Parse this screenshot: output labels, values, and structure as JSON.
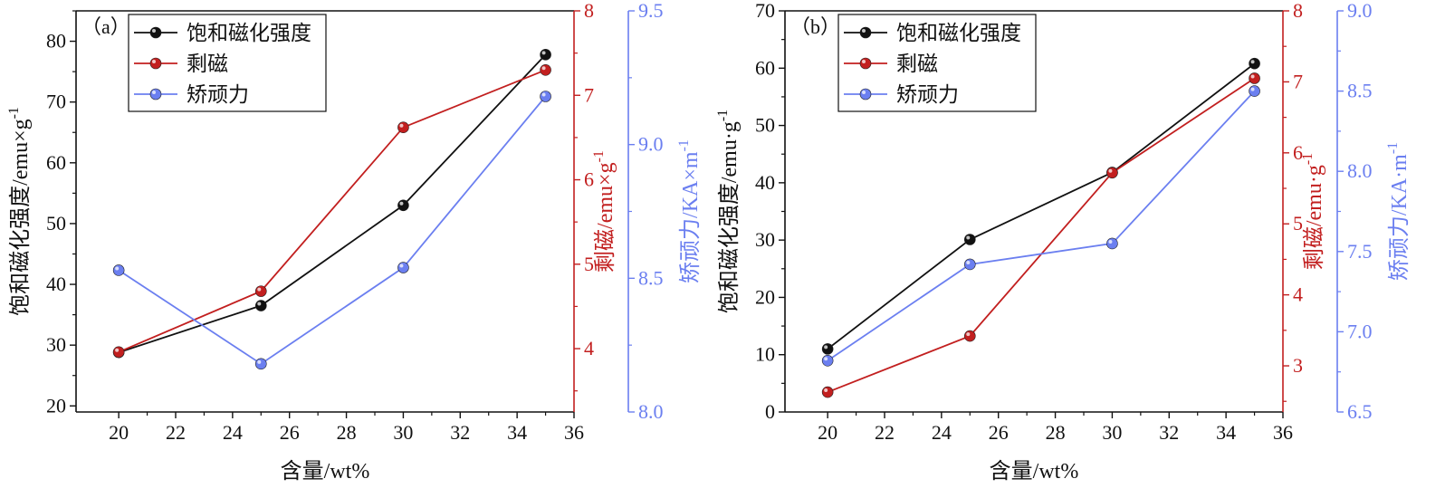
{
  "colors": {
    "black": "#111111",
    "red": "#c21f1f",
    "blue": "#6b7ff0",
    "frame": "#111111"
  },
  "chart_data": [
    {
      "type": "line",
      "panel_label": "（a）",
      "x": [
        20,
        25,
        30,
        35
      ],
      "xlabel": "含量/wt%",
      "xlim": [
        18.5,
        36
      ],
      "xticks": [
        20,
        22,
        24,
        26,
        28,
        30,
        32,
        34,
        36
      ],
      "axes": {
        "left": {
          "label": "饱和磁化强度/emu×g",
          "label_sup": "-1",
          "ylim": [
            19,
            85
          ],
          "ticks": [
            20,
            30,
            40,
            50,
            60,
            70,
            80
          ]
        },
        "right1": {
          "label": "剩磁/emu×g",
          "label_sup": "-1",
          "ylim": [
            3.25,
            8
          ],
          "ticks": [
            4,
            5,
            6,
            7,
            8
          ]
        },
        "right2": {
          "label": "矫顽力/KA×m",
          "label_sup": "-1",
          "ylim": [
            8.0,
            9.5
          ],
          "ticks": [
            "8.0",
            "8.5",
            "9.0",
            "9.5"
          ]
        }
      },
      "series": [
        {
          "name": "饱和磁化强度",
          "axis": "left",
          "color": "black",
          "values": [
            28.8,
            36.5,
            53.0,
            77.8
          ]
        },
        {
          "name": "剩磁",
          "axis": "right1",
          "color": "red",
          "values": [
            3.96,
            4.68,
            6.62,
            7.3
          ]
        },
        {
          "name": "矫顽力",
          "axis": "right2",
          "color": "blue",
          "values": [
            8.53,
            8.18,
            8.54,
            9.18
          ]
        }
      ],
      "legend_position": "top-left"
    },
    {
      "type": "line",
      "panel_label": "（b）",
      "x": [
        20,
        25,
        30,
        35
      ],
      "xlabel": "含量/wt%",
      "xlim": [
        18.5,
        36
      ],
      "xticks": [
        20,
        22,
        24,
        26,
        28,
        30,
        32,
        34,
        36
      ],
      "axes": {
        "left": {
          "label": "饱和磁化强度/emu·g",
          "label_sup": "-1",
          "ylim": [
            0,
            70
          ],
          "ticks": [
            0,
            10,
            20,
            30,
            40,
            50,
            60,
            70
          ]
        },
        "right1": {
          "label": "剩磁/emu·g",
          "label_sup": "-1",
          "ylim": [
            2.35,
            8
          ],
          "ticks": [
            3,
            4,
            5,
            6,
            7,
            8
          ]
        },
        "right2": {
          "label": "矫顽力/KA·m",
          "label_sup": "-1",
          "ylim": [
            6.5,
            9.0
          ],
          "ticks": [
            "6.5",
            "7.0",
            "7.5",
            "8.0",
            "8.5",
            "9.0"
          ]
        }
      },
      "series": [
        {
          "name": "饱和磁化强度",
          "axis": "left",
          "color": "black",
          "values": [
            11.0,
            30.1,
            41.8,
            60.8
          ]
        },
        {
          "name": "剩磁",
          "axis": "right1",
          "color": "red",
          "values": [
            2.63,
            3.42,
            5.72,
            7.05
          ]
        },
        {
          "name": "矫顽力",
          "axis": "right2",
          "color": "blue",
          "values": [
            6.82,
            7.42,
            7.55,
            8.5
          ]
        }
      ],
      "legend_position": "top-left"
    }
  ]
}
